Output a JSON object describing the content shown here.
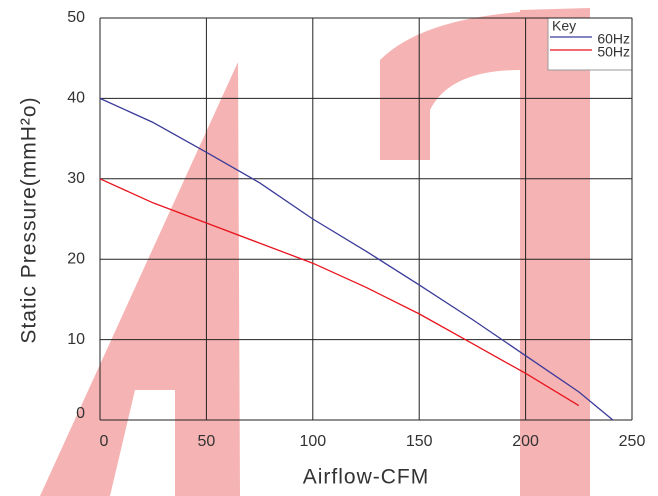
{
  "chart_data": {
    "type": "line",
    "xlabel": "Airflow-CFM",
    "ylabel": "Static Pressure(mmH²o)",
    "legend_title": "Key",
    "legend_position": "upper right",
    "x": [
      0,
      25,
      50,
      75,
      100,
      125,
      150,
      175,
      200,
      225,
      241
    ],
    "series": [
      {
        "name": "60Hz",
        "color": "#3a3a9a",
        "values": [
          40,
          37,
          33.3,
          29.5,
          25,
          21,
          16.8,
          12.5,
          8,
          3.5,
          0
        ]
      },
      {
        "name": "50Hz",
        "color": "#e8141e",
        "values": [
          30,
          27,
          24.5,
          22,
          19.5,
          16.5,
          13.2,
          9.5,
          5.8,
          1.8,
          null
        ]
      }
    ],
    "xlim": [
      0,
      250
    ],
    "xticks": [
      0,
      50,
      100,
      150,
      200,
      250
    ],
    "ylim": [
      0,
      50
    ],
    "yticks": [
      0,
      10,
      20,
      30,
      40,
      50
    ],
    "grid": true
  }
}
